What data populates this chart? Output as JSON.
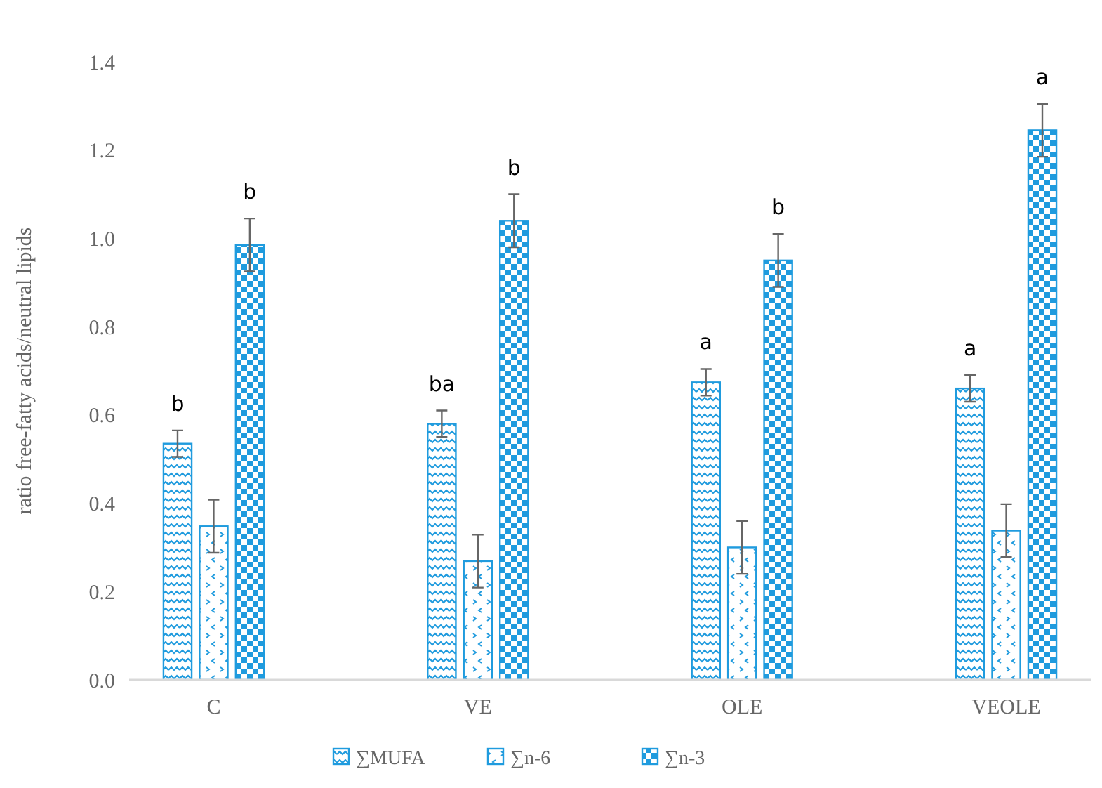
{
  "chart_data": {
    "type": "bar",
    "ylabel": "ratio free-fatty acids/neutral lipids",
    "categories": [
      "C",
      "VE",
      "OLE",
      "VEOLE"
    ],
    "series": [
      {
        "name": "∑MUFA",
        "color": "#1f9bde",
        "values": [
          0.535,
          0.58,
          0.674,
          0.66
        ],
        "errors": [
          0.03,
          0.03,
          0.03,
          0.03
        ]
      },
      {
        "name": "∑n-6",
        "color": "#1f9bde",
        "values": [
          0.348,
          0.269,
          0.3,
          0.338
        ],
        "errors": [
          0.06,
          0.06,
          0.06,
          0.06
        ]
      },
      {
        "name": "∑n-3",
        "color": "#1f9bde",
        "values": [
          0.985,
          1.04,
          0.95,
          1.245
        ],
        "errors": [
          0.06,
          0.06,
          0.06,
          0.06
        ]
      }
    ],
    "ylim": [
      0,
      1.4
    ],
    "yticks": [
      {
        "value": 0,
        "label": "0.0"
      },
      {
        "value": 0.2,
        "label": "0.2"
      },
      {
        "value": 0.4,
        "label": "0.4"
      },
      {
        "value": 0.6,
        "label": "0.6"
      },
      {
        "value": 0.8,
        "label": "0.8"
      },
      {
        "value": 1,
        "label": "1.0"
      },
      {
        "value": 1.2,
        "label": "1.2"
      },
      {
        "value": 1.4,
        "label": "1.4"
      }
    ],
    "grid": false,
    "legend": "bottom",
    "annotations": [
      "b",
      "b",
      "ba",
      "b",
      "a",
      "b",
      "a",
      "a"
    ]
  }
}
